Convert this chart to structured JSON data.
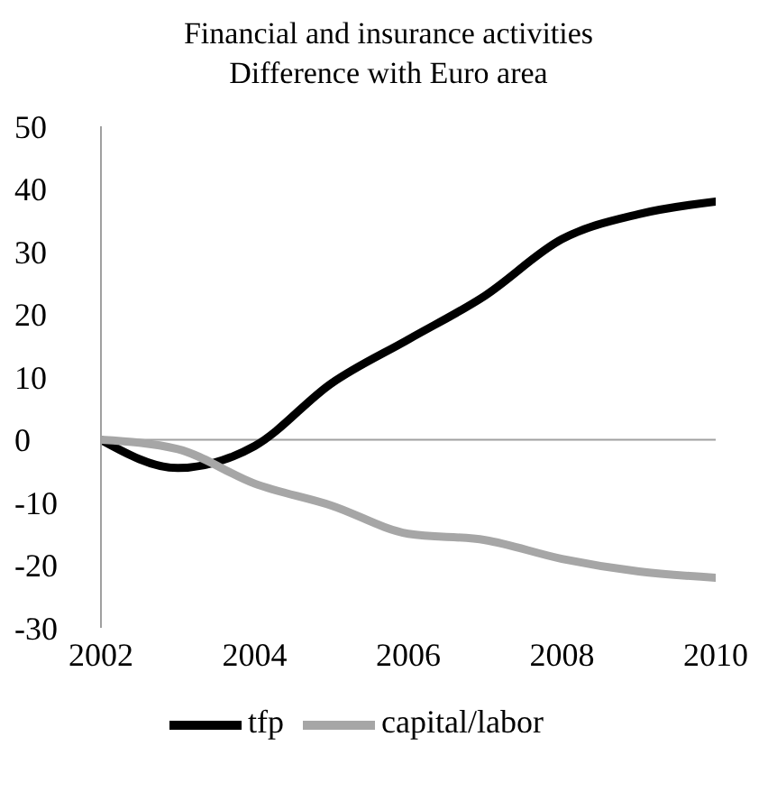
{
  "chart_data": {
    "type": "line",
    "title": "Financial and insurance activities",
    "subtitle": "Difference with Euro area",
    "x": [
      2002,
      2003,
      2004,
      2005,
      2006,
      2007,
      2008,
      2009,
      2010
    ],
    "series": [
      {
        "name": "tfp",
        "color": "#000000",
        "values": [
          0,
          -4.5,
          -1,
          9,
          16,
          23,
          32,
          36,
          38
        ]
      },
      {
        "name": "capital/labor",
        "color": "#a6a6a6",
        "values": [
          0,
          -1.5,
          -7,
          -10.5,
          -15,
          -16,
          -19,
          -21,
          -22
        ]
      }
    ],
    "xlim": [
      2002,
      2010
    ],
    "xticks": [
      2002,
      2004,
      2006,
      2008,
      2010
    ],
    "ylim": [
      -30,
      50
    ],
    "yticks": [
      -30,
      -20,
      -10,
      0,
      10,
      20,
      30,
      40,
      50
    ],
    "ref_lines": [
      {
        "axis": "y",
        "value": 0,
        "color": "#a0a0a0"
      }
    ],
    "grid": false,
    "legend": "bottom",
    "marker": "none",
    "line_style": "solid"
  }
}
